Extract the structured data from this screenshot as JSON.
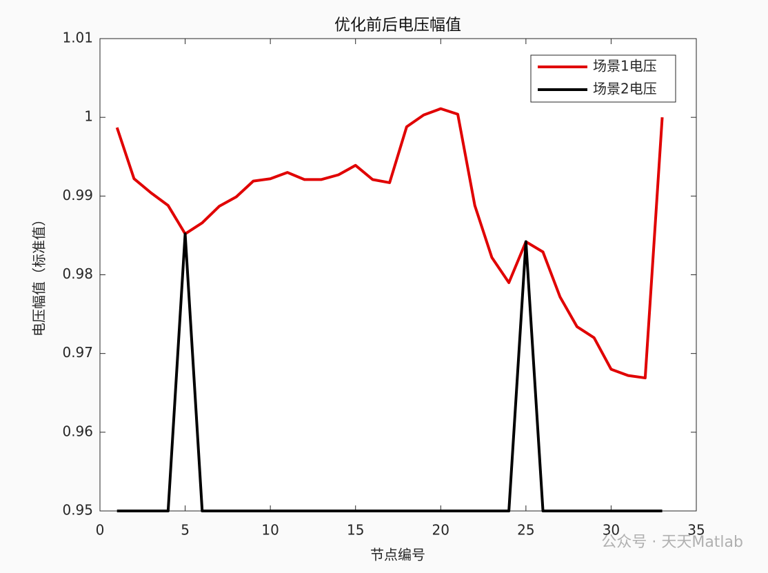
{
  "chart_data": {
    "type": "line",
    "title": "优化前后电压幅值",
    "x_label": "节点编号",
    "y_label": "电压幅值（标准值）",
    "x": [
      1,
      2,
      3,
      4,
      5,
      6,
      7,
      8,
      9,
      10,
      11,
      12,
      13,
      14,
      15,
      16,
      17,
      18,
      19,
      20,
      21,
      22,
      23,
      24,
      25,
      26,
      27,
      28,
      29,
      30,
      31,
      32,
      33
    ],
    "series": [
      {
        "name": "场景1电压",
        "color": "#e00000",
        "values": [
          0.9987,
          0.9922,
          0.9904,
          0.9888,
          0.9852,
          0.9866,
          0.9887,
          0.9899,
          0.9919,
          0.9922,
          0.993,
          0.9921,
          0.9921,
          0.9927,
          0.9939,
          0.9921,
          0.9917,
          0.9988,
          1.0003,
          1.0011,
          1.0004,
          0.9888,
          0.9822,
          0.979,
          0.9842,
          0.9829,
          0.9772,
          0.9734,
          0.972,
          0.968,
          0.9672,
          0.9669,
          1.0
        ]
      },
      {
        "name": "场景2电压",
        "color": "#000000",
        "values": [
          0.95,
          0.95,
          0.95,
          0.95,
          0.9852,
          0.95,
          0.95,
          0.95,
          0.95,
          0.95,
          0.95,
          0.95,
          0.95,
          0.95,
          0.95,
          0.95,
          0.95,
          0.95,
          0.95,
          0.95,
          0.95,
          0.95,
          0.95,
          0.95,
          0.9842,
          0.95,
          0.95,
          0.95,
          0.95,
          0.95,
          0.95,
          0.95,
          0.95
        ]
      }
    ],
    "xlim": [
      0,
      35
    ],
    "xticks": [
      0,
      5,
      10,
      15,
      20,
      25,
      30,
      35
    ],
    "ylim": [
      0.95,
      1.01
    ],
    "yticks": [
      0.95,
      0.96,
      0.97,
      0.98,
      0.99,
      1,
      1.01
    ],
    "grid": false,
    "legend": "upper right",
    "watermark": "公众号 · 天天Matlab"
  }
}
